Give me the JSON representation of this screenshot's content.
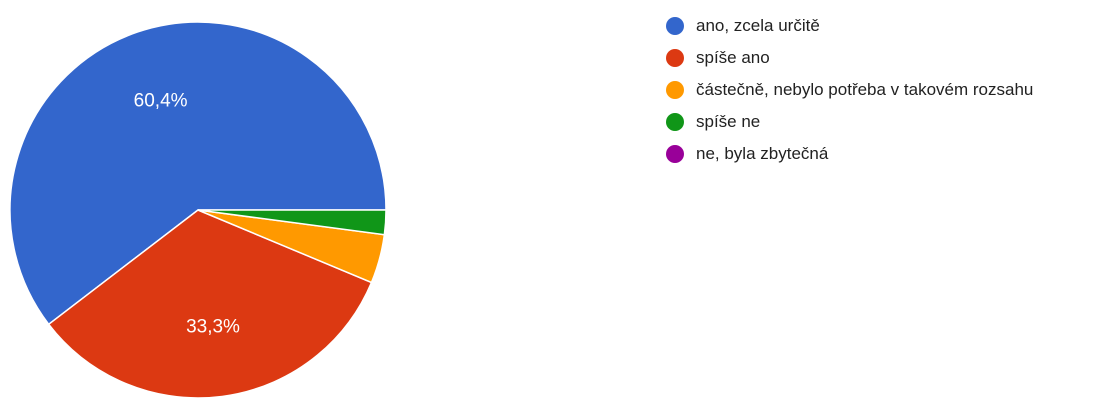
{
  "chart_data": {
    "type": "pie",
    "categories": [
      "ano, zcela určitě",
      "spíše ano",
      "částečně, nebylo potřeba v takovém rozsahu",
      "spíše ne",
      "ne, byla zbytečná"
    ],
    "values": [
      60.4,
      33.3,
      4.2,
      2.1,
      0
    ],
    "data_labels": [
      "60,4%",
      "33,3%",
      "",
      "",
      ""
    ],
    "colors": [
      "#3366cc",
      "#dc3912",
      "#ff9900",
      "#109618",
      "#990099"
    ],
    "legend_position": "right"
  }
}
